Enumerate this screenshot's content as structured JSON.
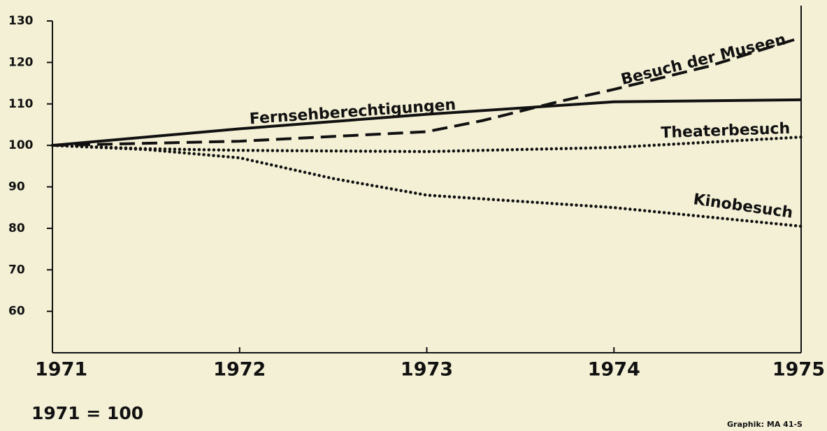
{
  "chart_data": {
    "type": "line",
    "note": "1971 = 100",
    "source": "Graphik: MA 41-S",
    "xlim": [
      1971,
      1975
    ],
    "xticks": [
      1971,
      1972,
      1973,
      1974,
      1975
    ],
    "ylim": [
      50,
      130
    ],
    "yticks": [
      60,
      70,
      80,
      90,
      100,
      110,
      120,
      130
    ],
    "series": [
      {
        "name": "Fernsehberechtigungen",
        "color": "#111111",
        "style": "solid",
        "x": [
          1971,
          1972,
          1973,
          1973.5,
          1974,
          1975
        ],
        "values": [
          100,
          104,
          107.5,
          109,
          110.5,
          111
        ]
      },
      {
        "name": "Besuch der Museen",
        "color": "#111111",
        "style": "dashed",
        "x": [
          1971,
          1972,
          1973,
          1973.3,
          1973.7,
          1974,
          1974.5,
          1975
        ],
        "values": [
          100,
          101,
          103.3,
          106,
          110.5,
          113.5,
          119,
          126
        ]
      },
      {
        "name": "Theaterbesuch",
        "color": "#111111",
        "style": "dotted",
        "x": [
          1971,
          1971.5,
          1972,
          1973,
          1974,
          1975
        ],
        "values": [
          100,
          99.2,
          98.8,
          98.5,
          99.5,
          102
        ]
      },
      {
        "name": "Kinobesuch",
        "color": "#111111",
        "style": "dotted",
        "x": [
          1971,
          1971.5,
          1972,
          1972.5,
          1973,
          1974,
          1975
        ],
        "values": [
          100,
          99,
          97,
          92,
          88,
          85,
          80.5
        ]
      }
    ]
  }
}
